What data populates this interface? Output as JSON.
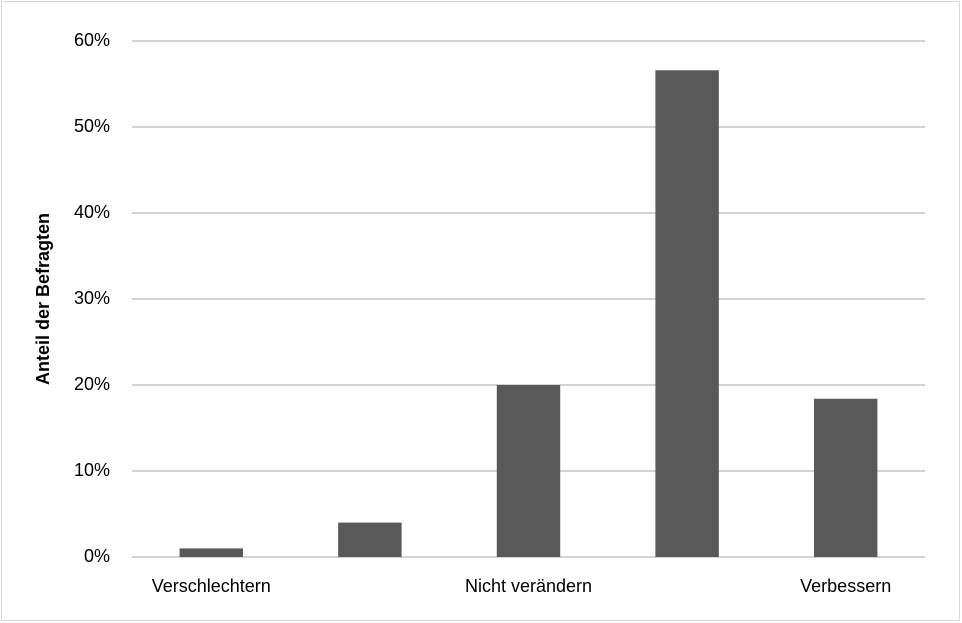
{
  "chart_data": {
    "type": "bar",
    "y_label": "Anteil der Befragten",
    "categories": [
      "Verschlechtern",
      null,
      "Nicht verändern",
      null,
      "Verbessern"
    ],
    "values": [
      1,
      4,
      20,
      56.6,
      18.4
    ],
    "color": "#595959",
    "ylim": [
      0,
      60
    ],
    "yticks": [
      {
        "value": 0,
        "label": "0%"
      },
      {
        "value": 10,
        "label": "10%"
      },
      {
        "value": 20,
        "label": "20%"
      },
      {
        "value": 30,
        "label": "30%"
      },
      {
        "value": 40,
        "label": "40%"
      },
      {
        "value": 50,
        "label": "50%"
      },
      {
        "value": 60,
        "label": "60%"
      }
    ],
    "grid": true
  }
}
